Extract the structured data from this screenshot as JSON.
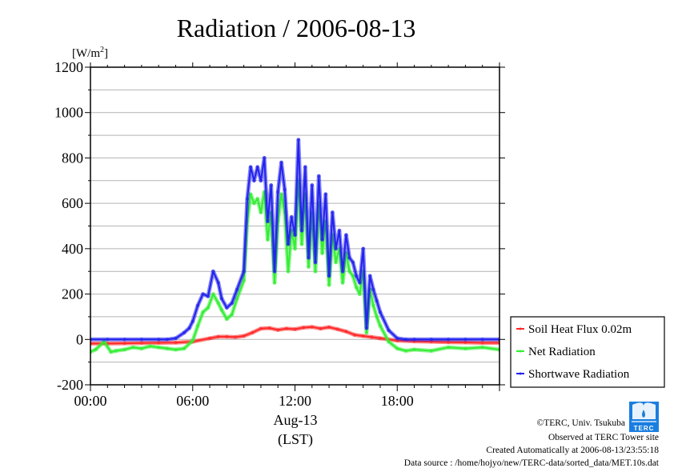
{
  "chart_data": {
    "type": "line",
    "title": "Radiation / 2006-08-13",
    "ylabel_unit": "[W/m",
    "ylabel_sup": "2",
    "ylabel_close": "]",
    "xlabel_date": "Aug-13",
    "xlabel_tz": "(LST)",
    "ylim": [
      -200,
      1200
    ],
    "xlim": [
      0,
      24
    ],
    "yticks": [
      -200,
      0,
      200,
      400,
      600,
      800,
      1000,
      1200
    ],
    "ytick_labels": [
      "-200",
      "0",
      "200",
      "400",
      "600",
      "800",
      "1000",
      "1200"
    ],
    "xticks": [
      0,
      6,
      12,
      18
    ],
    "xtick_labels": [
      "00:00",
      "06:00",
      "12:00",
      "18:00"
    ],
    "grid": true,
    "legend_placement": "right-bottom outside",
    "series": [
      {
        "name": "Soil Heat Flux 0.02m",
        "color": "#ff2a2a",
        "x": [
          0,
          1,
          2,
          3,
          4,
          5,
          6,
          7,
          7.5,
          8,
          8.5,
          9,
          9.5,
          10,
          10.5,
          11,
          11.5,
          12,
          12.5,
          13,
          13.5,
          14,
          14.5,
          15,
          15.5,
          16,
          16.5,
          17,
          18,
          19,
          20,
          21,
          22,
          23,
          24
        ],
        "values": [
          -18,
          -18,
          -17,
          -16,
          -15,
          -14,
          -10,
          5,
          12,
          12,
          10,
          15,
          30,
          48,
          50,
          42,
          48,
          45,
          52,
          55,
          48,
          54,
          45,
          35,
          20,
          15,
          10,
          5,
          -5,
          -8,
          -10,
          -12,
          -13,
          -15,
          -15
        ]
      },
      {
        "name": "Net Radiation",
        "color": "#33ee33",
        "x": [
          0,
          0.3,
          0.8,
          1.2,
          1.5,
          2,
          2.5,
          3,
          3.5,
          4,
          4.5,
          5,
          5.5,
          6,
          6.3,
          6.6,
          6.9,
          7.2,
          7.5,
          7.7,
          8,
          8.3,
          8.6,
          9,
          9.2,
          9.4,
          9.6,
          9.8,
          10,
          10.2,
          10.4,
          10.6,
          10.8,
          11,
          11.2,
          11.4,
          11.6,
          11.8,
          12,
          12.2,
          12.4,
          12.6,
          12.8,
          13,
          13.2,
          13.4,
          13.6,
          13.8,
          14,
          14.2,
          14.4,
          14.6,
          14.8,
          15,
          15.2,
          15.4,
          15.6,
          15.8,
          16,
          16.2,
          16.4,
          16.6,
          16.8,
          17,
          17.5,
          18,
          18.5,
          19,
          20,
          21,
          22,
          23,
          24
        ],
        "values": [
          -55,
          -45,
          -10,
          -55,
          -50,
          -45,
          -35,
          -40,
          -30,
          -35,
          -40,
          -45,
          -40,
          -5,
          60,
          120,
          140,
          200,
          160,
          130,
          90,
          110,
          180,
          260,
          520,
          640,
          600,
          620,
          560,
          650,
          440,
          560,
          250,
          520,
          640,
          560,
          300,
          480,
          400,
          700,
          420,
          640,
          320,
          560,
          300,
          600,
          380,
          520,
          240,
          460,
          340,
          400,
          250,
          380,
          300,
          280,
          230,
          200,
          300,
          30,
          220,
          150,
          100,
          60,
          -10,
          -40,
          -50,
          -45,
          -50,
          -35,
          -40,
          -35,
          -45
        ]
      },
      {
        "name": "Shortwave Radiation",
        "color": "#2222ee",
        "x": [
          0,
          1,
          2,
          3,
          4,
          4.5,
          5,
          5.5,
          5.8,
          6,
          6.3,
          6.6,
          6.9,
          7.2,
          7.5,
          7.7,
          8,
          8.3,
          8.6,
          9,
          9.2,
          9.4,
          9.6,
          9.8,
          10,
          10.2,
          10.4,
          10.6,
          10.8,
          11,
          11.2,
          11.4,
          11.6,
          11.8,
          12,
          12.2,
          12.4,
          12.6,
          12.8,
          13,
          13.2,
          13.4,
          13.6,
          13.8,
          14,
          14.2,
          14.4,
          14.6,
          14.8,
          15,
          15.2,
          15.4,
          15.6,
          15.8,
          16,
          16.2,
          16.4,
          16.6,
          16.8,
          17,
          17.5,
          18,
          18.5,
          19,
          20,
          21,
          22,
          23,
          24
        ],
        "values": [
          0,
          0,
          0,
          0,
          0,
          0,
          5,
          30,
          50,
          80,
          150,
          200,
          190,
          300,
          250,
          180,
          140,
          160,
          220,
          300,
          620,
          760,
          700,
          760,
          700,
          800,
          520,
          680,
          300,
          650,
          780,
          660,
          420,
          540,
          460,
          880,
          480,
          760,
          360,
          680,
          340,
          720,
          440,
          640,
          280,
          560,
          400,
          480,
          300,
          460,
          360,
          340,
          280,
          250,
          400,
          50,
          280,
          220,
          170,
          120,
          40,
          5,
          0,
          0,
          0,
          0,
          0,
          0,
          0
        ]
      }
    ]
  },
  "credits": {
    "copyright": "©TERC, Univ. Tsukuba",
    "observed": "Observed at TERC Tower site",
    "created": "Created Automatically at 2006-08-13/23:55:18",
    "source": "Data source : /home/hojyo/new/TERC-data/sorted_data/MET.10s.dat",
    "logo_text": "TERC"
  }
}
